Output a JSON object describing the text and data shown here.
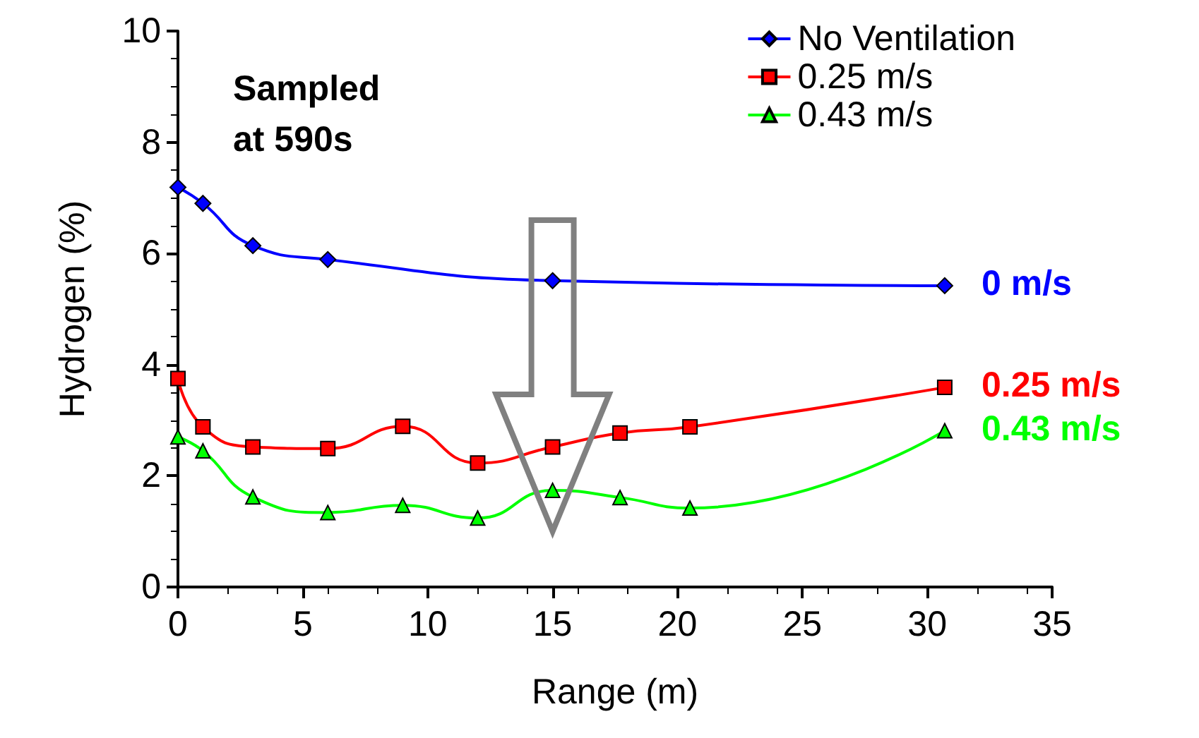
{
  "chart_data": {
    "type": "line",
    "xlabel": "Range (m)",
    "ylabel": "Hydrogen (%)",
    "xlim": [
      0,
      35
    ],
    "xticks": [
      0,
      5,
      10,
      15,
      20,
      25,
      30,
      35
    ],
    "ylim": [
      0,
      10
    ],
    "yticks": [
      0,
      2,
      4,
      6,
      8,
      10
    ],
    "grid": false,
    "legend": "top right",
    "series": [
      {
        "name": "No Ventilation",
        "color": "#0000ff",
        "marker": "diamond",
        "x": [
          0,
          1,
          3,
          6,
          15,
          30.7
        ],
        "values": [
          7.19,
          6.9,
          6.14,
          5.89,
          5.51,
          5.42
        ]
      },
      {
        "name": "0.25 m/s",
        "color": "#ff0000",
        "marker": "square",
        "x": [
          0,
          1,
          3,
          6,
          9,
          12,
          15,
          17.7,
          20.5,
          30.7
        ],
        "values": [
          3.75,
          2.88,
          2.52,
          2.49,
          2.89,
          2.23,
          2.52,
          2.77,
          2.88,
          3.59
        ]
      },
      {
        "name": "0.43 m/s",
        "color": "#00ff00",
        "marker": "triangle",
        "x": [
          0,
          1,
          3,
          6,
          9,
          12,
          15,
          17.7,
          20.5,
          30.7
        ],
        "values": [
          2.7,
          2.45,
          1.62,
          1.34,
          1.47,
          1.24,
          1.74,
          1.61,
          1.42,
          2.81
        ]
      }
    ],
    "annotations": [
      "Sampled at 590s",
      "0 m/s",
      "0.25 m/s",
      "0.43 m/s"
    ]
  }
}
